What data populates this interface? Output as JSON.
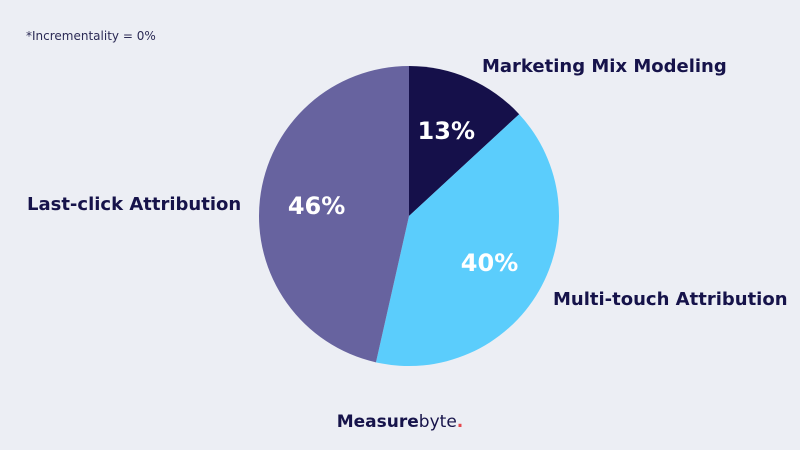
{
  "note": "*Incrementality = 0%",
  "brand": {
    "bold": "Measure",
    "light": "byte",
    "dot": "."
  },
  "chart_data": {
    "type": "pie",
    "title": "",
    "categories": [
      "Marketing Mix Modeling",
      "Multi-touch Attribution",
      "Last-click Attribution"
    ],
    "values": [
      13,
      40,
      46
    ],
    "value_labels": [
      "13%",
      "40%",
      "46%"
    ],
    "colors": [
      "#15104a",
      "#5bcdfc",
      "#67639f"
    ],
    "start_angle_deg": 0,
    "direction": "clockwise",
    "legend": "none"
  }
}
